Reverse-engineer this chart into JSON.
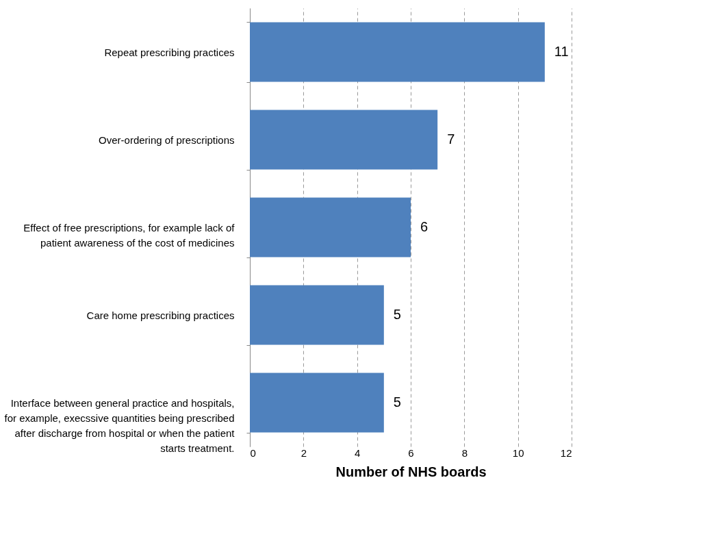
{
  "chart_data": {
    "type": "bar",
    "orientation": "horizontal",
    "xlabel": "Number of NHS boards",
    "categories": [
      "Repeat prescribing practices",
      "Over-ordering of prescriptions",
      "Effect of free prescriptions, for example lack of\npatient awareness of the cost of medicines",
      "Care home prescribing practices",
      "Interface between general practice and hospitals,\nfor example, execssive quantities being prescribed\nafter discharge from hospital or when the patient\nstarts treatment."
    ],
    "values": [
      11,
      7,
      6,
      5,
      5
    ],
    "color": "#4f81bd",
    "xlim": [
      0,
      12
    ],
    "xticks": [
      0,
      2,
      4,
      6,
      8,
      10,
      12
    ],
    "grid": "x",
    "data_labels": true
  }
}
